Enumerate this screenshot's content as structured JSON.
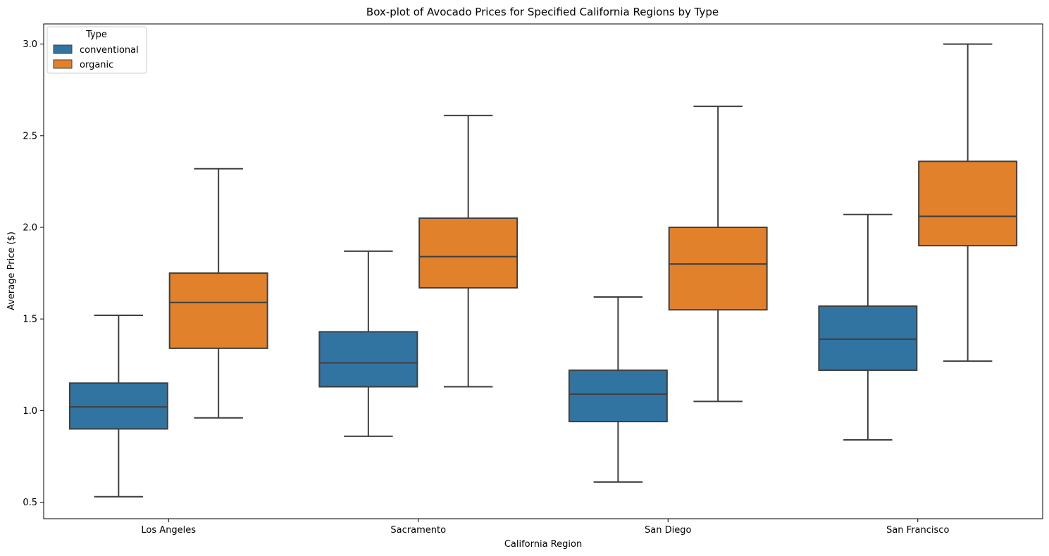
{
  "chart_data": {
    "type": "box",
    "title": "Box-plot of Avocado Prices for Specified California Regions by Type",
    "xlabel": "California Region",
    "ylabel": "Average Price ($)",
    "categories": [
      "Los Angeles",
      "Sacramento",
      "San Diego",
      "San Francisco"
    ],
    "ylim": [
      0.41,
      3.11
    ],
    "yticks": [
      0.5,
      1.0,
      1.5,
      2.0,
      2.5,
      3.0
    ],
    "ytick_labels": [
      "0.5",
      "1.0",
      "1.5",
      "2.0",
      "2.5",
      "3.0"
    ],
    "grid": false,
    "legend": {
      "title": "Type",
      "position": "top-left"
    },
    "series": [
      {
        "name": "conventional",
        "color": "#3274a1",
        "boxes": [
          {
            "whislo": 0.53,
            "q1": 0.9,
            "med": 1.02,
            "q3": 1.15,
            "whishi": 1.52
          },
          {
            "whislo": 0.86,
            "q1": 1.13,
            "med": 1.26,
            "q3": 1.43,
            "whishi": 1.87
          },
          {
            "whislo": 0.61,
            "q1": 0.94,
            "med": 1.09,
            "q3": 1.22,
            "whishi": 1.62
          },
          {
            "whislo": 0.84,
            "q1": 1.22,
            "med": 1.39,
            "q3": 1.57,
            "whishi": 2.07
          }
        ]
      },
      {
        "name": "organic",
        "color": "#e1812c",
        "boxes": [
          {
            "whislo": 0.96,
            "q1": 1.34,
            "med": 1.59,
            "q3": 1.75,
            "whishi": 2.32
          },
          {
            "whislo": 1.13,
            "q1": 1.67,
            "med": 1.84,
            "q3": 2.05,
            "whishi": 2.61
          },
          {
            "whislo": 1.05,
            "q1": 1.55,
            "med": 1.8,
            "q3": 2.0,
            "whishi": 2.66
          },
          {
            "whislo": 1.27,
            "q1": 1.9,
            "med": 2.06,
            "q3": 2.36,
            "whishi": 3.0
          }
        ]
      }
    ]
  }
}
